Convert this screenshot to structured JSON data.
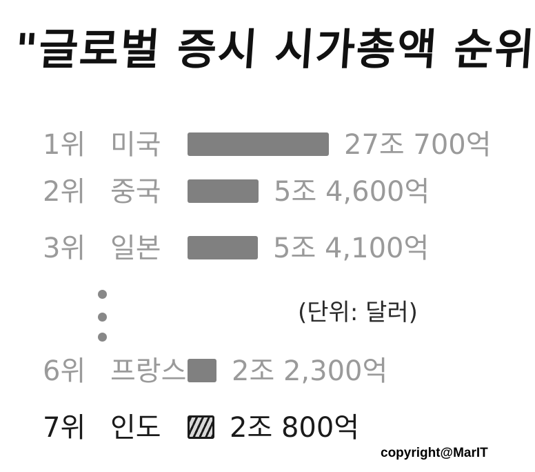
{
  "chart_data": {
    "type": "bar",
    "title": "\"글로벌 증시 시가총액 순위\"",
    "unit_note": "(단위: 달러)",
    "rows": [
      {
        "rank": "1위",
        "country": "미국",
        "value_label": "27조 700억",
        "value": 27.07,
        "style": "muted"
      },
      {
        "rank": "2위",
        "country": "중국",
        "value_label": "5조 4,600억",
        "value": 5.46,
        "style": "muted"
      },
      {
        "rank": "3위",
        "country": "일본",
        "value_label": "5조 4,100억",
        "value": 5.41,
        "style": "muted"
      },
      {
        "rank": "6위",
        "country": "프랑스",
        "value_label": "2조 2,300억",
        "value": 2.23,
        "style": "muted"
      },
      {
        "rank": "7위",
        "country": "인도",
        "value_label": "2조 800억",
        "value": 2.08,
        "style": "strong"
      }
    ],
    "colors": {
      "muted_text": "#9a9a9a",
      "strong_text": "#1a1a1a",
      "bar": "#808080"
    }
  },
  "copyright": "copyright@MarIT"
}
